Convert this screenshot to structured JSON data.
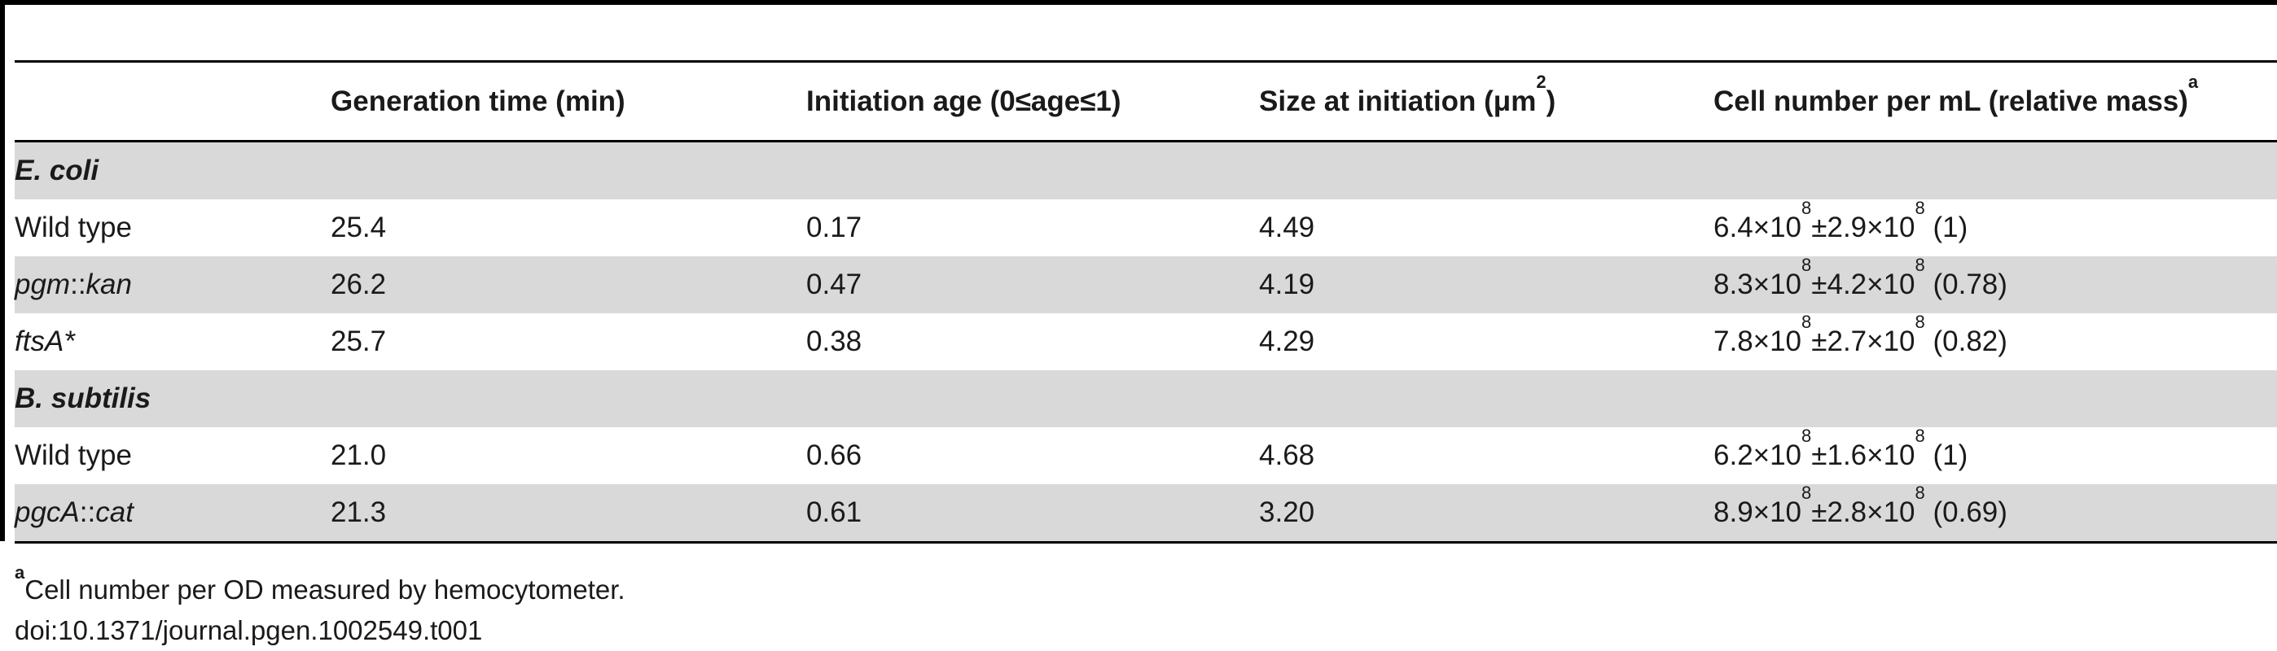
{
  "table": {
    "headers": [
      {
        "text": "",
        "sup": ""
      },
      {
        "text": "Generation time (min)",
        "sup": ""
      },
      {
        "text": "Initiation age (0≤age≤1)",
        "sup": ""
      },
      {
        "text": "Size at initiation (μm",
        "sup": "2",
        "suffix": ")"
      },
      {
        "text": "Cell number per mL (relative mass)",
        "sup": "a",
        "suffix": ""
      }
    ],
    "groups": [
      {
        "label": "E. coli",
        "rows": [
          {
            "strain_pre": "Wild type",
            "strain_post": "",
            "italic": false,
            "gen": "25.4",
            "age": "0.17",
            "size": "4.49",
            "count_a": "6.4×10",
            "count_a_exp": "8",
            "count_b": "±2.9×10",
            "count_b_exp": "8",
            "count_rel": " (1)"
          },
          {
            "strain_pre": "pgm",
            "strain_mid": "::",
            "strain_post": "kan",
            "italic": true,
            "gen": "26.2",
            "age": "0.47",
            "size": "4.19",
            "count_a": "8.3×10",
            "count_a_exp": "8",
            "count_b": "±4.2×10",
            "count_b_exp": "8",
            "count_rel": " (0.78)"
          },
          {
            "strain_pre": "ftsA*",
            "strain_mid": "",
            "strain_post": "",
            "italic": true,
            "gen": "25.7",
            "age": "0.38",
            "size": "4.29",
            "count_a": "7.8×10",
            "count_a_exp": "8",
            "count_b": "±2.7×10",
            "count_b_exp": "8",
            "count_rel": " (0.82)"
          }
        ]
      },
      {
        "label": "B. subtilis",
        "rows": [
          {
            "strain_pre": "Wild type",
            "strain_mid": "",
            "strain_post": "",
            "italic": false,
            "gen": "21.0",
            "age": "0.66",
            "size": "4.68",
            "count_a": "6.2×10",
            "count_a_exp": "8",
            "count_b": "±1.6×10",
            "count_b_exp": "8",
            "count_rel": " (1)"
          },
          {
            "strain_pre": "pgcA",
            "strain_mid": "::",
            "strain_post": "cat",
            "italic": true,
            "gen": "21.3",
            "age": "0.61",
            "size": "3.20",
            "count_a": "8.9×10",
            "count_a_exp": "8",
            "count_b": "±2.8×10",
            "count_b_exp": "8",
            "count_rel": " (0.69)"
          }
        ]
      }
    ]
  },
  "footnote": {
    "marker": "a",
    "text": "Cell number per OD measured by hemocytometer."
  },
  "doi": "doi:10.1371/journal.pgen.1002549.t001"
}
